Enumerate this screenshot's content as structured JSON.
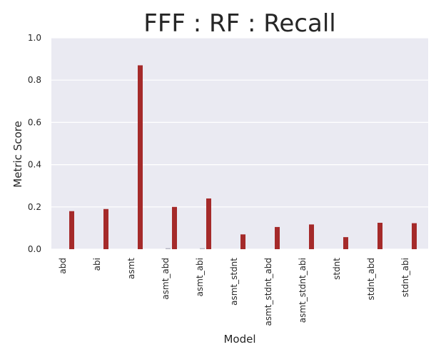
{
  "chart_data": {
    "type": "bar",
    "title": "FFF : RF : Recall",
    "xlabel": "Model",
    "ylabel": "Metric Score",
    "categories": [
      "abd",
      "abi",
      "asmt",
      "asmt_abd",
      "asmt_abi",
      "asmt_stdnt",
      "asmt_stdnt_abd",
      "asmt_stdnt_abi",
      "stdnt",
      "stdnt_abd",
      "stdnt_abi"
    ],
    "series": [
      {
        "values": [
          0.0,
          0.0,
          0.0,
          0.005,
          0.005,
          0.0,
          0.0,
          0.0,
          0.0,
          0.0,
          0.0
        ],
        "color": "#b8b8c4"
      },
      {
        "values": [
          0.18,
          0.19,
          0.87,
          0.2,
          0.24,
          0.07,
          0.105,
          0.117,
          0.057,
          0.125,
          0.123
        ],
        "color": "#a52a2a"
      }
    ],
    "ylim": [
      0,
      1.0
    ],
    "yticks": [
      "0.0",
      "0.2",
      "0.4",
      "0.6",
      "0.8",
      "1.0"
    ],
    "grid": true,
    "background": "#eaeaf2",
    "legend": "none"
  }
}
